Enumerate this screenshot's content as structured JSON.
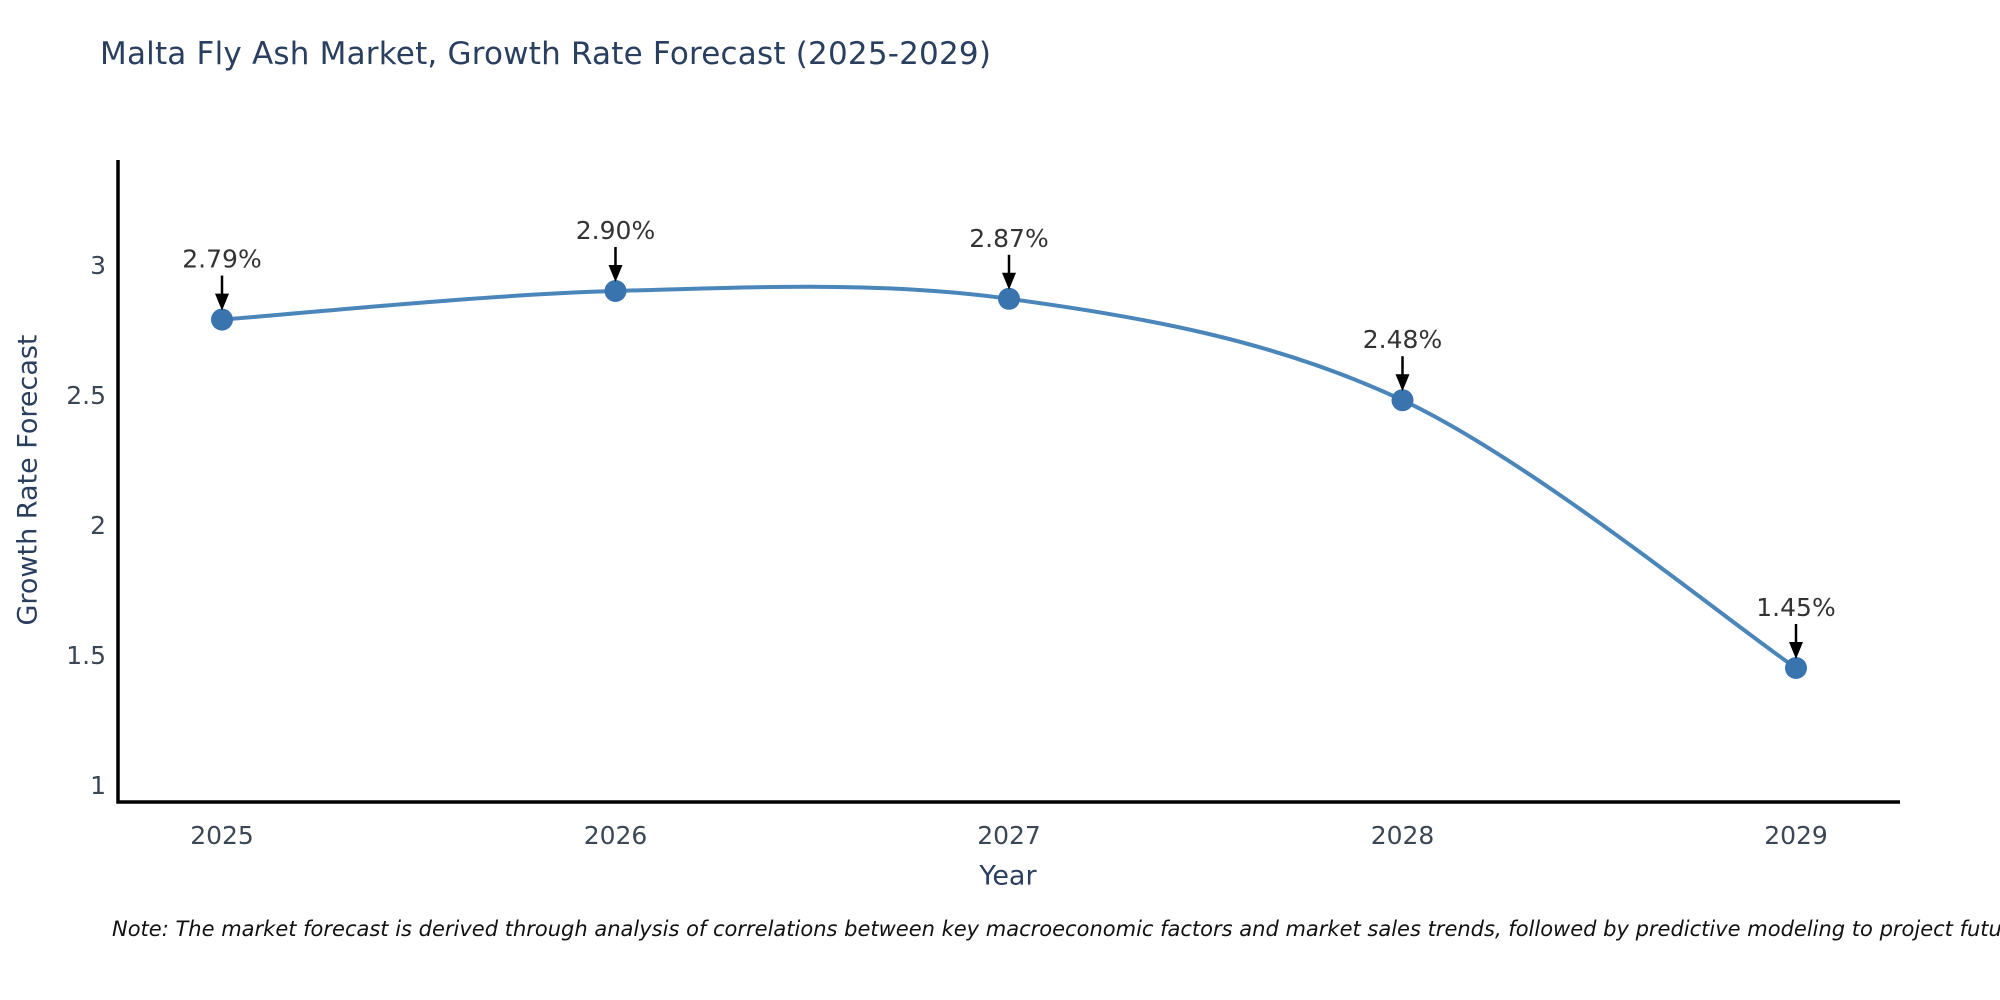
{
  "title": "Malta Fly Ash Market, Growth Rate Forecast (2025-2029)",
  "note": "Note: The market forecast is derived through analysis of correlations between key macroeconomic factors and market sales trends, followed by predictive modeling to project future sales",
  "chart_data": {
    "type": "line",
    "title": "Malta Fly Ash Market, Growth Rate Forecast (2025-2029)",
    "xlabel": "Year",
    "ylabel": "Growth Rate Forecast",
    "categories": [
      "2025",
      "2026",
      "2027",
      "2028",
      "2029"
    ],
    "values": [
      2.79,
      2.9,
      2.87,
      2.48,
      1.45
    ],
    "point_labels": [
      "2.79%",
      "2.90%",
      "2.87%",
      "2.48%",
      "1.45%"
    ],
    "yticks": [
      1,
      1.5,
      2,
      2.5,
      3
    ],
    "ylim": [
      0.93,
      3.4
    ],
    "line_shape": "spline",
    "grid": false,
    "legend": "none",
    "colors": {
      "line": "#4a86ba",
      "marker": "#3a74ae",
      "axis": "#000000",
      "tick_text": "#3b4754",
      "title_text": "#2a3f5f",
      "annotation_text": "#333333",
      "arrow": "#000000",
      "background": "#ffffff"
    }
  }
}
